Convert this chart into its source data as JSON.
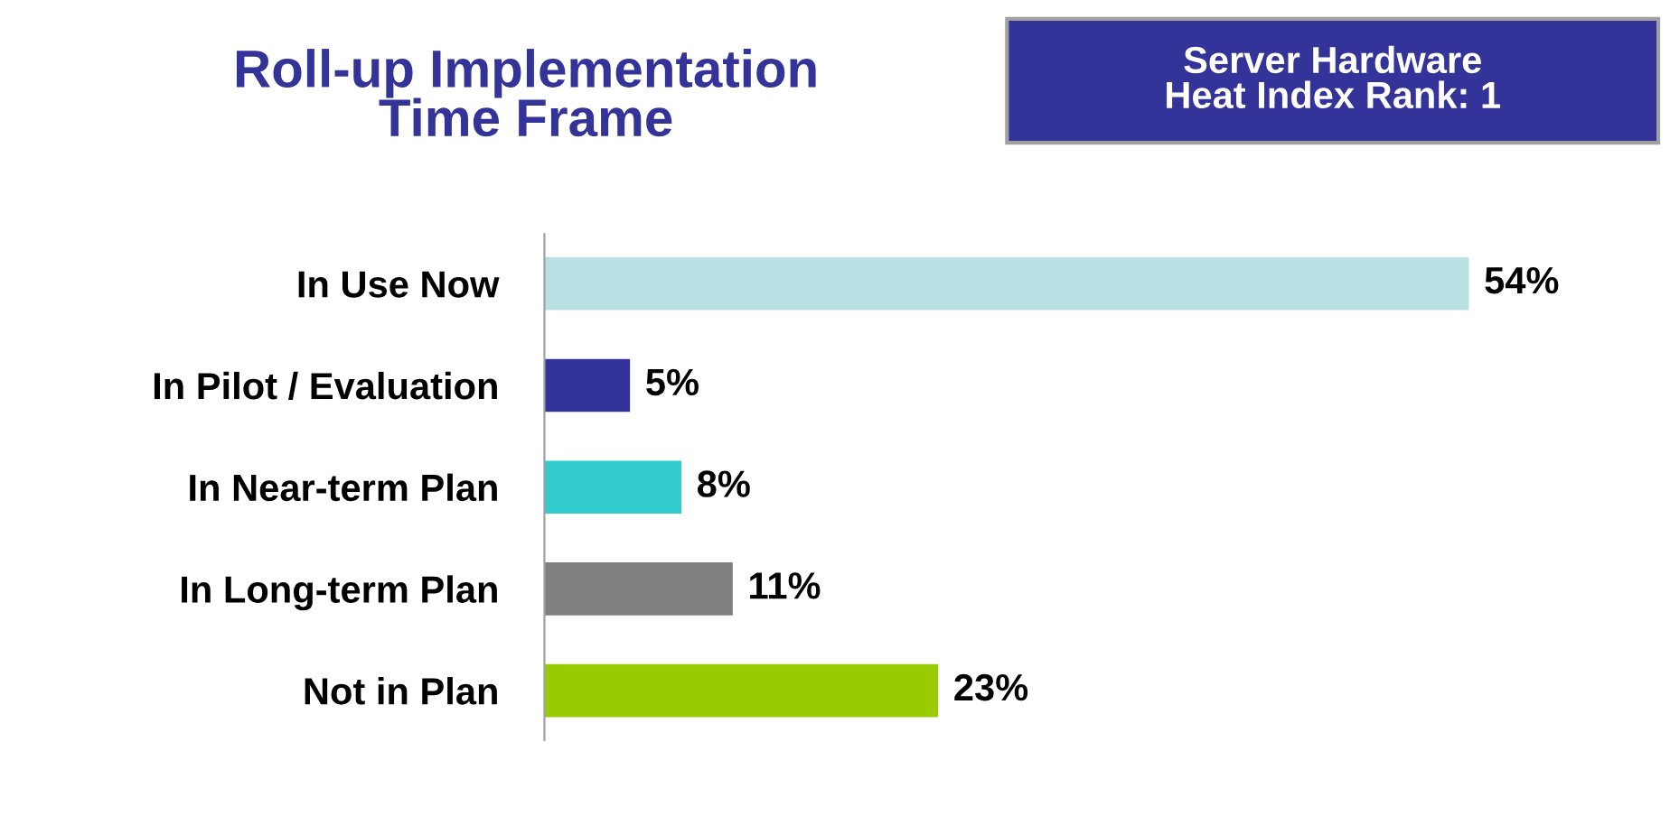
{
  "chart_data": {
    "type": "bar",
    "orientation": "horizontal",
    "title": "Roll-up Implementation\nTime Frame",
    "subtitle": "Server Hardware\nHeat Index Rank: 1",
    "categories": [
      "In Use Now",
      "In Pilot / Evaluation",
      "In Near-term Plan",
      "In Long-term Plan",
      "Not in Plan"
    ],
    "values": [
      54,
      5,
      8,
      11,
      23
    ],
    "colors": [
      "#b9e0e3",
      "#333399",
      "#33cccc",
      "#808080",
      "#99cc00"
    ],
    "value_labels": [
      "54%",
      "5%",
      "8%",
      "11%",
      "23%"
    ],
    "grid": false,
    "legend": false
  }
}
